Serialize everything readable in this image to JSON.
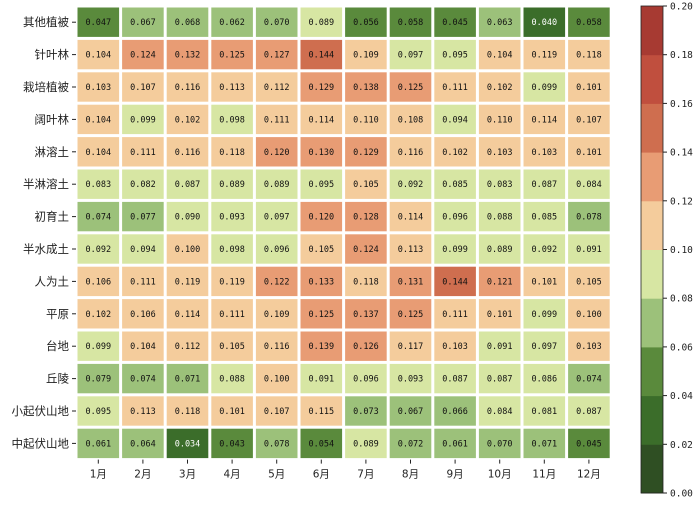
{
  "chart_data": {
    "type": "heatmap",
    "rows": [
      "其他植被",
      "针叶林",
      "栽培植被",
      "阔叶林",
      "淋溶土",
      "半淋溶土",
      "初育土",
      "半水成土",
      "人为土",
      "平原",
      "台地",
      "丘陵",
      "小起伏山地",
      "中起伏山地"
    ],
    "columns": [
      "1月",
      "2月",
      "3月",
      "4月",
      "5月",
      "6月",
      "7月",
      "8月",
      "9月",
      "10月",
      "11月",
      "12月"
    ],
    "labels": [
      [
        "0.047",
        "0.067",
        "0.068",
        "0.062",
        "0.070",
        "0.089",
        "0.056",
        "0.058",
        "0.045",
        "0.063",
        "0.040",
        "0.058"
      ],
      [
        "0.104",
        "0.124",
        "0.132",
        "0.125",
        "0.127",
        "0.144",
        "0.109",
        "0.097",
        "0.095",
        "0.104",
        "0.119",
        "0.118"
      ],
      [
        "0.103",
        "0.107",
        "0.116",
        "0.113",
        "0.112",
        "0.129",
        "0.138",
        "0.125",
        "0.111",
        "0.102",
        "0.099",
        "0.101"
      ],
      [
        "0.104",
        "0.099",
        "0.102",
        "0.098",
        "0.111",
        "0.114",
        "0.110",
        "0.108",
        "0.094",
        "0.110",
        "0.114",
        "0.107"
      ],
      [
        "0.104",
        "0.111",
        "0.116",
        "0.118",
        "0.120",
        "0.130",
        "0.129",
        "0.116",
        "0.102",
        "0.103",
        "0.103",
        "0.101"
      ],
      [
        "0.083",
        "0.082",
        "0.087",
        "0.089",
        "0.089",
        "0.095",
        "0.105",
        "0.092",
        "0.085",
        "0.083",
        "0.087",
        "0.084"
      ],
      [
        "0.074",
        "0.077",
        "0.090",
        "0.093",
        "0.097",
        "0.120",
        "0.128",
        "0.114",
        "0.096",
        "0.088",
        "0.085",
        "0.078"
      ],
      [
        "0.092",
        "0.094",
        "0.100",
        "0.098",
        "0.096",
        "0.105",
        "0.124",
        "0.113",
        "0.099",
        "0.089",
        "0.092",
        "0.091"
      ],
      [
        "0.106",
        "0.111",
        "0.119",
        "0.119",
        "0.122",
        "0.133",
        "0.118",
        "0.131",
        "0.144",
        "0.121",
        "0.101",
        "0.105"
      ],
      [
        "0.102",
        "0.106",
        "0.114",
        "0.111",
        "0.109",
        "0.125",
        "0.137",
        "0.125",
        "0.111",
        "0.101",
        "0.099",
        "0.100"
      ],
      [
        "0.099",
        "0.104",
        "0.112",
        "0.105",
        "0.116",
        "0.139",
        "0.126",
        "0.117",
        "0.103",
        "0.091",
        "0.097",
        "0.103"
      ],
      [
        "0.079",
        "0.074",
        "0.071",
        "0.088",
        "0.100",
        "0.091",
        "0.096",
        "0.093",
        "0.087",
        "0.087",
        "0.086",
        "0.074"
      ],
      [
        "0.095",
        "0.113",
        "0.118",
        "0.101",
        "0.107",
        "0.115",
        "0.073",
        "0.067",
        "0.066",
        "0.084",
        "0.081",
        "0.087"
      ],
      [
        "0.061",
        "0.064",
        "0.034",
        "0.043",
        "0.078",
        "0.054",
        "0.089",
        "0.072",
        "0.061",
        "0.070",
        "0.071",
        "0.045"
      ]
    ],
    "colorbar": {
      "range": [
        0.0,
        0.2
      ],
      "ticks": [
        "0.00",
        "0.02",
        "0.04",
        "0.06",
        "0.08",
        "0.10",
        "0.12",
        "0.14",
        "0.16",
        "0.18",
        "0.20"
      ],
      "colors": [
        "#2f4f23",
        "#3b6d2a",
        "#5a8a3c",
        "#9cc17a",
        "#d7e6a3",
        "#f4cc9c",
        "#e89c74",
        "#cf6e4f",
        "#c04f3e",
        "#a73a32"
      ]
    },
    "title": "",
    "xlabel": "",
    "ylabel": ""
  }
}
